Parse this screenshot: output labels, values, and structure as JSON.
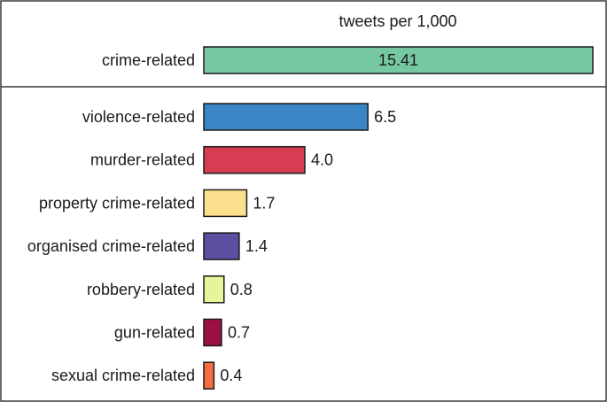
{
  "chart_data": {
    "type": "bar",
    "orientation": "horizontal",
    "title": "tweets per 1,000",
    "total": {
      "category": "crime-related",
      "value": 15.41,
      "value_label": "15.41",
      "color": "#76c8a3",
      "label_inside": true
    },
    "categories": [
      "violence-related",
      "murder-related",
      "property crime-related",
      "organised crime-related",
      "robbery-related",
      "gun-related",
      "sexual crime-related"
    ],
    "values": [
      6.5,
      4.0,
      1.7,
      1.4,
      0.8,
      0.7,
      0.4
    ],
    "value_labels": [
      "6.5",
      "4.0",
      "1.7",
      "1.4",
      "0.8",
      "0.7",
      "0.4"
    ],
    "colors": [
      "#3a86c4",
      "#d63d52",
      "#fde08d",
      "#5e4ea1",
      "#e7f49d",
      "#9c1144",
      "#f46d43"
    ],
    "xlim": [
      0,
      15.41
    ],
    "grid": false,
    "legend": "none"
  }
}
